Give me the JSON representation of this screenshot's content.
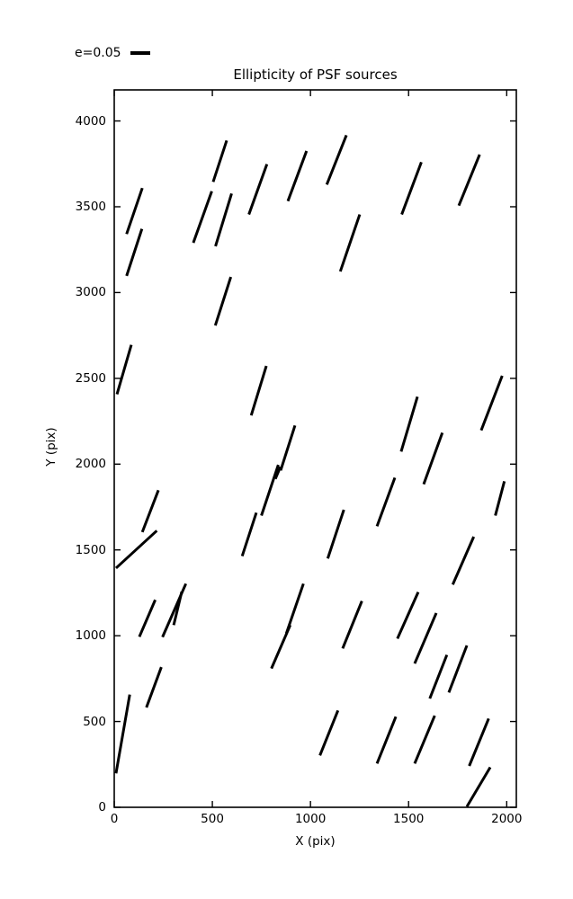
{
  "chart_data": {
    "type": "scatter",
    "mark": "line-segment",
    "title": "Ellipticity of PSF sources",
    "xlabel": "X (pix)",
    "ylabel": "Y (pix)",
    "xlim": [
      0,
      2049
    ],
    "ylim": [
      0,
      4181
    ],
    "xticks": [
      0,
      500,
      1000,
      1500,
      2000
    ],
    "yticks": [
      0,
      500,
      1000,
      1500,
      2000,
      2500,
      3000,
      3500,
      4000
    ],
    "grid": false,
    "legend": {
      "label": "e=0.05",
      "position": "top-left-above-axes"
    },
    "colors": {
      "stroke": "#000000",
      "background": "#ffffff"
    },
    "segments": [
      {
        "x1": 63,
        "y1": 3341,
        "x2": 143,
        "y2": 3609
      },
      {
        "x1": 63,
        "y1": 3097,
        "x2": 141,
        "y2": 3371
      },
      {
        "x1": 504,
        "y1": 3645,
        "x2": 573,
        "y2": 3886
      },
      {
        "x1": 403,
        "y1": 3290,
        "x2": 497,
        "y2": 3590
      },
      {
        "x1": 516,
        "y1": 3270,
        "x2": 598,
        "y2": 3577
      },
      {
        "x1": 686,
        "y1": 3455,
        "x2": 778,
        "y2": 3748
      },
      {
        "x1": 885,
        "y1": 3533,
        "x2": 980,
        "y2": 3825
      },
      {
        "x1": 1083,
        "y1": 3629,
        "x2": 1183,
        "y2": 3917
      },
      {
        "x1": 1152,
        "y1": 3123,
        "x2": 1251,
        "y2": 3455
      },
      {
        "x1": 1465,
        "y1": 3455,
        "x2": 1565,
        "y2": 3760
      },
      {
        "x1": 1756,
        "y1": 3507,
        "x2": 1862,
        "y2": 3804
      },
      {
        "x1": 14,
        "y1": 2407,
        "x2": 87,
        "y2": 2695
      },
      {
        "x1": 515,
        "y1": 2808,
        "x2": 594,
        "y2": 3091
      },
      {
        "x1": 698,
        "y1": 2284,
        "x2": 775,
        "y2": 2572
      },
      {
        "x1": 1462,
        "y1": 2073,
        "x2": 1545,
        "y2": 2393
      },
      {
        "x1": 1870,
        "y1": 2197,
        "x2": 1977,
        "y2": 2515
      },
      {
        "x1": 1577,
        "y1": 1883,
        "x2": 1672,
        "y2": 2183
      },
      {
        "x1": 652,
        "y1": 1464,
        "x2": 724,
        "y2": 1717
      },
      {
        "x1": 750,
        "y1": 1700,
        "x2": 836,
        "y2": 1996
      },
      {
        "x1": 821,
        "y1": 1914,
        "x2": 847,
        "y2": 1984
      },
      {
        "x1": 848,
        "y1": 1963,
        "x2": 921,
        "y2": 2225
      },
      {
        "x1": 143,
        "y1": 1604,
        "x2": 225,
        "y2": 1848
      },
      {
        "x1": 9,
        "y1": 1394,
        "x2": 217,
        "y2": 1612
      },
      {
        "x1": 1339,
        "y1": 1638,
        "x2": 1430,
        "y2": 1921
      },
      {
        "x1": 1088,
        "y1": 1450,
        "x2": 1170,
        "y2": 1734
      },
      {
        "x1": 1942,
        "y1": 1700,
        "x2": 1988,
        "y2": 1900
      },
      {
        "x1": 1725,
        "y1": 1298,
        "x2": 1832,
        "y2": 1577
      },
      {
        "x1": 128,
        "y1": 994,
        "x2": 209,
        "y2": 1209
      },
      {
        "x1": 246,
        "y1": 992,
        "x2": 365,
        "y2": 1303
      },
      {
        "x1": 303,
        "y1": 1062,
        "x2": 344,
        "y2": 1256
      },
      {
        "x1": 164,
        "y1": 582,
        "x2": 240,
        "y2": 817
      },
      {
        "x1": 9,
        "y1": 198,
        "x2": 79,
        "y2": 657
      },
      {
        "x1": 801,
        "y1": 809,
        "x2": 897,
        "y2": 1062
      },
      {
        "x1": 877,
        "y1": 1013,
        "x2": 964,
        "y2": 1303
      },
      {
        "x1": 1164,
        "y1": 926,
        "x2": 1262,
        "y2": 1202
      },
      {
        "x1": 1443,
        "y1": 983,
        "x2": 1549,
        "y2": 1254
      },
      {
        "x1": 1531,
        "y1": 838,
        "x2": 1641,
        "y2": 1132
      },
      {
        "x1": 1608,
        "y1": 634,
        "x2": 1695,
        "y2": 888
      },
      {
        "x1": 1705,
        "y1": 669,
        "x2": 1797,
        "y2": 943
      },
      {
        "x1": 1048,
        "y1": 302,
        "x2": 1140,
        "y2": 564
      },
      {
        "x1": 1339,
        "y1": 255,
        "x2": 1435,
        "y2": 528
      },
      {
        "x1": 1531,
        "y1": 255,
        "x2": 1633,
        "y2": 534
      },
      {
        "x1": 1809,
        "y1": 241,
        "x2": 1908,
        "y2": 517
      },
      {
        "x1": 1797,
        "y1": 4,
        "x2": 1916,
        "y2": 233
      }
    ]
  }
}
